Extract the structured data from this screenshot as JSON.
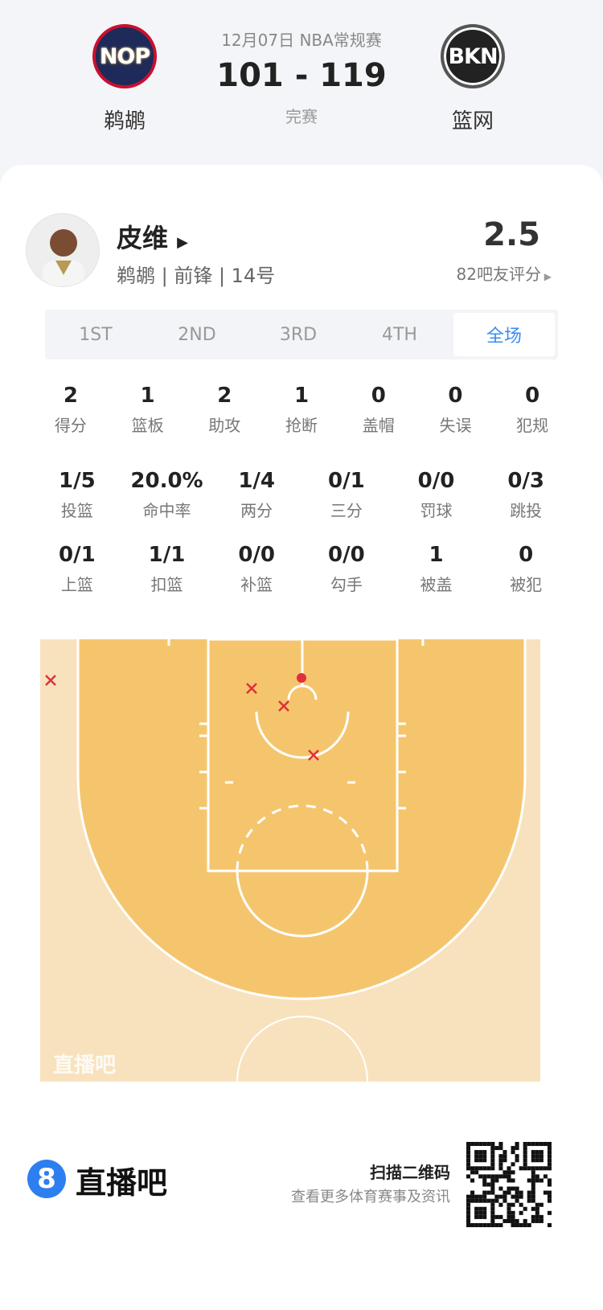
{
  "game": {
    "date_league": "12月07日 NBA常规赛",
    "score": "101 - 119",
    "status": "完赛",
    "home": {
      "abbr": "NOP",
      "name": "鹈鹕"
    },
    "away": {
      "abbr": "BKN",
      "name": "篮网"
    }
  },
  "player": {
    "name": "皮维",
    "info": "鹈鹕 | 前锋 | 14号",
    "rating": "2.5",
    "rating_label": "82吧友评分"
  },
  "tabs": [
    {
      "label": "1ST"
    },
    {
      "label": "2ND"
    },
    {
      "label": "3RD"
    },
    {
      "label": "4TH"
    },
    {
      "label": "全场",
      "active": true
    }
  ],
  "stats_rows": [
    [
      {
        "v": "2",
        "l": "得分"
      },
      {
        "v": "1",
        "l": "篮板"
      },
      {
        "v": "2",
        "l": "助攻"
      },
      {
        "v": "1",
        "l": "抢断"
      },
      {
        "v": "0",
        "l": "盖帽"
      },
      {
        "v": "0",
        "l": "失误"
      },
      {
        "v": "0",
        "l": "犯规"
      }
    ],
    [
      {
        "v": "1/5",
        "l": "投篮"
      },
      {
        "v": "20.0%",
        "l": "命中率"
      },
      {
        "v": "1/4",
        "l": "两分"
      },
      {
        "v": "0/1",
        "l": "三分"
      },
      {
        "v": "0/0",
        "l": "罚球"
      },
      {
        "v": "0/3",
        "l": "跳投"
      }
    ],
    [
      {
        "v": "0/1",
        "l": "上篮"
      },
      {
        "v": "1/1",
        "l": "扣篮"
      },
      {
        "v": "0/0",
        "l": "补篮"
      },
      {
        "v": "0/0",
        "l": "勾手"
      },
      {
        "v": "1",
        "l": "被盖"
      },
      {
        "v": "0",
        "l": "被犯"
      }
    ]
  ],
  "shot_chart": {
    "watermark": "直播吧",
    "colors": {
      "miss": "#e0303a",
      "make": "#e0303a",
      "paint": "#f5c56e",
      "outside": "#f8e2bd"
    },
    "shots": [
      {
        "result": "miss"
      },
      {
        "result": "miss"
      },
      {
        "result": "miss"
      },
      {
        "result": "miss"
      },
      {
        "result": "make"
      }
    ]
  },
  "footer": {
    "brand": "直播吧",
    "brand_icon": "8",
    "scan": "扫描二维码",
    "more": "查看更多体育赛事及资讯"
  }
}
